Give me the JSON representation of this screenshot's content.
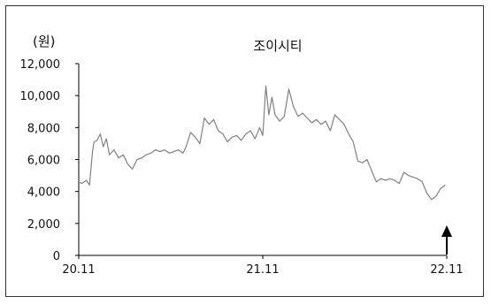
{
  "chart_data": {
    "type": "line",
    "title": "조이시티",
    "ylabel": "(원)",
    "xlabel": "",
    "ylim": [
      0,
      12000
    ],
    "y_ticks": [
      0,
      2000,
      4000,
      6000,
      8000,
      10000,
      12000
    ],
    "y_tick_labels": [
      "0",
      "2,000",
      "4,000",
      "6,000",
      "8,000",
      "10,000",
      "12,000"
    ],
    "x_ticks": [
      "20.11",
      "21.11",
      "22.11"
    ],
    "xlim": [
      0,
      24
    ],
    "grid": false,
    "legend": "none",
    "annotation": "up-arrow",
    "series": [
      {
        "color": "#808080",
        "x": [
          0,
          0.2,
          0.5,
          0.7,
          0.9,
          1.0,
          1.2,
          1.4,
          1.6,
          1.8,
          2.0,
          2.3,
          2.6,
          2.9,
          3.2,
          3.5,
          3.8,
          4.1,
          4.4,
          4.7,
          5.0,
          5.3,
          5.6,
          5.9,
          6.2,
          6.5,
          6.8,
          7.0,
          7.3,
          7.6,
          7.9,
          8.2,
          8.5,
          8.8,
          9.1,
          9.4,
          9.7,
          10.0,
          10.3,
          10.6,
          10.9,
          11.2,
          11.5,
          11.8,
          12.0,
          12.2,
          12.4,
          12.6,
          12.8,
          13.1,
          13.4,
          13.7,
          14.0,
          14.3,
          14.6,
          14.9,
          15.2,
          15.5,
          15.8,
          16.1,
          16.4,
          16.7,
          17.0,
          17.3,
          17.6,
          17.9,
          18.2,
          18.5,
          18.8,
          19.1,
          19.4,
          19.7,
          20.0,
          20.3,
          20.6,
          20.9,
          21.2,
          21.5,
          21.8,
          22.1,
          22.4,
          22.7,
          23.0,
          23.3,
          23.6,
          23.9
        ],
        "y": [
          4600,
          4500,
          4700,
          4400,
          6500,
          7100,
          7200,
          7600,
          6800,
          7300,
          6300,
          6600,
          6100,
          6300,
          5700,
          5400,
          6000,
          6100,
          6300,
          6400,
          6600,
          6500,
          6600,
          6400,
          6500,
          6600,
          6400,
          6800,
          7700,
          7400,
          7000,
          8600,
          8200,
          8500,
          7800,
          7600,
          7100,
          7400,
          7500,
          7200,
          7600,
          7800,
          7300,
          8000,
          7500,
          10600,
          8800,
          9900,
          8800,
          8400,
          8700,
          10400,
          9300,
          8700,
          8900,
          8600,
          8300,
          8500,
          8200,
          8400,
          7800,
          8800,
          8500,
          8200,
          7600,
          7100,
          5900,
          5800,
          6000,
          5300,
          4600,
          4800,
          4700,
          4800,
          4700,
          4500,
          5200,
          5000,
          4900,
          4800,
          4600,
          3900,
          3500,
          3700,
          4200,
          4400
        ]
      }
    ]
  }
}
